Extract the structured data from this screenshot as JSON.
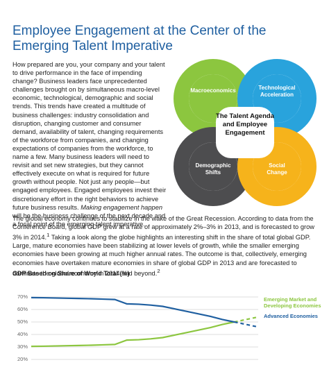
{
  "title": "Employee Engagement at the Center of the Emerging Talent Imperative",
  "intro": [
    "How prepared are you, your company and your talent to drive performance in the face of impending change? Business leaders face unprecedented challenges brought on by simultaneous macro-level economic, technological, demographic and social trends. This trends have created a multitude of business challenges: industry consolidation and disruption, changing customer and consumer demand, availability of talent, changing requirements of the workforce from companies, and changing expectations of companies from the workforce, to name a few. Many business leaders will need to revisit and set new strategies, but they cannot effectively execute on what is required for future growth without people. Not just any people—but engaged employees. Engaged employees invest their discretionary effort in the right behaviors to achieve future business results. ",
    "Making engagement happen",
    " will be the business challenge of the next decade and a focal point of the emerging talent imperative."
  ],
  "diagram": {
    "center": "The Talent Agenda and Employee Engagement",
    "nodes": [
      {
        "label": "Macroeconomics"
      },
      {
        "label": "Technological Acceleration"
      },
      {
        "label": "Demographic Shifts"
      },
      {
        "label": "Social Change"
      }
    ]
  },
  "body": [
    "The global economy continues to stabilize in the wake of the Great Recession. According to data from the Conference Board, global GDP grew at a rate of approximately 2%–3% in 2013, and is forecasted to grow 3% in 2014.",
    "1",
    " Taking a look along the globe highlights an interesting shift in the share of total global GDP. Large, mature economies have been stabilizing at lower levels of growth, while the smaller emerging economies have been growing at much higher annual rates. The outcome is that, collectively, emerging economies have overtaken mature economies in share of global GDP in 2013 and are forecasted to dominate the global economy in 2014 and beyond.",
    "2"
  ],
  "chart_data": {
    "type": "line",
    "title": "GDP Based on Share of World Total (%)",
    "categories": [
      null,
      null,
      null,
      null,
      null,
      null,
      null,
      null,
      null,
      null,
      null,
      null,
      null,
      null,
      null,
      null,
      null,
      null,
      null,
      null
    ],
    "series": [
      {
        "name": "Emerging Market and Developing Economies",
        "color": "#8cc63f",
        "values": [
          30.5,
          30.6,
          30.8,
          31,
          31.2,
          31.4,
          31.7,
          32,
          35.5,
          35.8,
          36.5,
          37.5,
          39.5,
          41.5,
          43.5,
          45.5,
          48,
          50,
          52,
          54
        ]
      },
      {
        "name": "Advanced Economies",
        "color": "#1f5fa0",
        "values": [
          69.5,
          69.4,
          69.2,
          69,
          68.8,
          68.6,
          68.3,
          68,
          64.5,
          64.2,
          63.5,
          62.5,
          60.5,
          58.5,
          56.5,
          54.5,
          52,
          50,
          48,
          46
        ]
      }
    ],
    "dashed_from": 17,
    "ylim": [
      20,
      72
    ],
    "yticks": [
      {
        "value": 70,
        "label": "70%"
      },
      {
        "value": 60,
        "label": "60%"
      },
      {
        "value": 50,
        "label": "50%"
      },
      {
        "value": 40,
        "label": "40%"
      },
      {
        "value": 30,
        "label": "30%"
      },
      {
        "value": 20,
        "label": "20%"
      }
    ],
    "grid": true
  }
}
